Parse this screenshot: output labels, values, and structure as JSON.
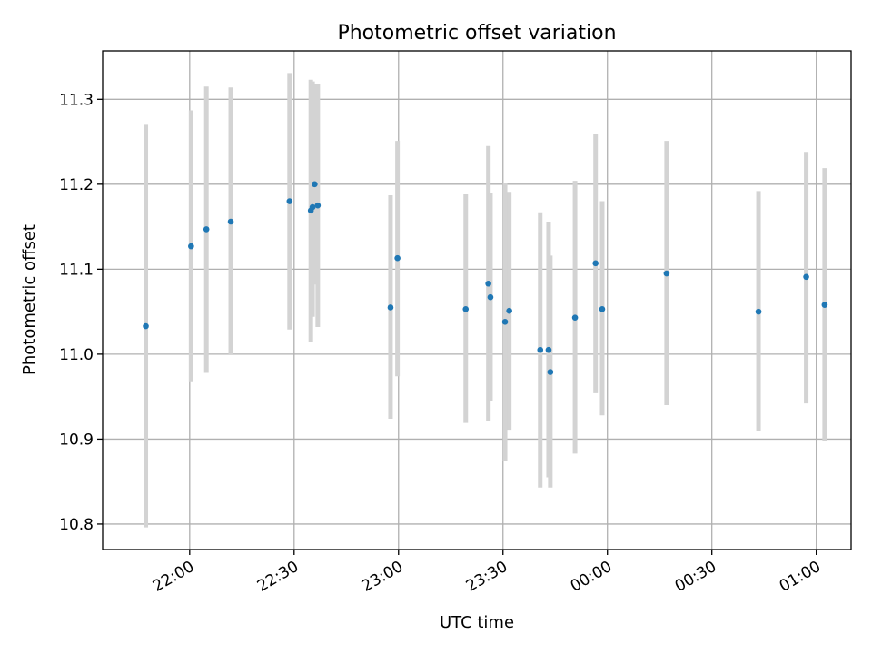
{
  "chart_data": {
    "type": "scatter",
    "title": "Photometric offset variation",
    "xlabel": "UTC time",
    "ylabel": "Photometric offset",
    "x_unit": "minutes after 21:00 UTC",
    "xlim": [
      35,
      250
    ],
    "ylim": [
      10.77,
      11.357
    ],
    "x_ticks": [
      {
        "value": 60,
        "label": "22:00"
      },
      {
        "value": 90,
        "label": "22:30"
      },
      {
        "value": 120,
        "label": "23:00"
      },
      {
        "value": 150,
        "label": "23:30"
      },
      {
        "value": 180,
        "label": "00:00"
      },
      {
        "value": 210,
        "label": "00:30"
      },
      {
        "value": 240,
        "label": "01:00"
      }
    ],
    "y_ticks": [
      {
        "value": 10.8,
        "label": "10.8"
      },
      {
        "value": 10.9,
        "label": "10.9"
      },
      {
        "value": 11.0,
        "label": "11.0"
      },
      {
        "value": 11.1,
        "label": "11.1"
      },
      {
        "value": 11.2,
        "label": "11.2"
      },
      {
        "value": 11.3,
        "label": "11.3"
      }
    ],
    "grid": true,
    "marker_color": "#1f77b4",
    "errorbar_color": "#d3d3d3",
    "points": [
      {
        "x": 47.4,
        "y": 11.033,
        "ylo": 10.796,
        "yhi": 11.27
      },
      {
        "x": 60.4,
        "y": 11.127,
        "ylo": 10.967,
        "yhi": 11.287
      },
      {
        "x": 64.8,
        "y": 11.147,
        "ylo": 10.978,
        "yhi": 11.315
      },
      {
        "x": 71.8,
        "y": 11.156,
        "ylo": 10.999,
        "yhi": 11.314
      },
      {
        "x": 88.7,
        "y": 11.18,
        "ylo": 11.029,
        "yhi": 11.331
      },
      {
        "x": 94.8,
        "y": 11.169,
        "ylo": 11.014,
        "yhi": 11.323
      },
      {
        "x": 95.3,
        "y": 11.173,
        "ylo": 11.044,
        "yhi": 11.321
      },
      {
        "x": 95.9,
        "y": 11.2,
        "ylo": 11.082,
        "yhi": 11.318
      },
      {
        "x": 96.8,
        "y": 11.175,
        "ylo": 11.032,
        "yhi": 11.318
      },
      {
        "x": 117.7,
        "y": 11.055,
        "ylo": 10.924,
        "yhi": 11.187
      },
      {
        "x": 119.7,
        "y": 11.113,
        "ylo": 10.974,
        "yhi": 11.251
      },
      {
        "x": 139.3,
        "y": 11.053,
        "ylo": 10.919,
        "yhi": 11.188
      },
      {
        "x": 145.8,
        "y": 11.083,
        "ylo": 10.921,
        "yhi": 11.245
      },
      {
        "x": 146.4,
        "y": 11.067,
        "ylo": 10.945,
        "yhi": 11.19
      },
      {
        "x": 150.6,
        "y": 11.038,
        "ylo": 10.874,
        "yhi": 11.202
      },
      {
        "x": 151.8,
        "y": 11.051,
        "ylo": 10.911,
        "yhi": 11.191
      },
      {
        "x": 160.7,
        "y": 11.005,
        "ylo": 10.843,
        "yhi": 11.167
      },
      {
        "x": 163.1,
        "y": 11.005,
        "ylo": 10.855,
        "yhi": 11.156
      },
      {
        "x": 163.6,
        "y": 10.979,
        "ylo": 10.843,
        "yhi": 11.116
      },
      {
        "x": 170.7,
        "y": 11.043,
        "ylo": 10.883,
        "yhi": 11.204
      },
      {
        "x": 176.6,
        "y": 11.107,
        "ylo": 10.954,
        "yhi": 11.259
      },
      {
        "x": 178.5,
        "y": 11.053,
        "ylo": 10.928,
        "yhi": 11.18
      },
      {
        "x": 197.0,
        "y": 11.095,
        "ylo": 10.94,
        "yhi": 11.251
      },
      {
        "x": 223.4,
        "y": 11.05,
        "ylo": 10.909,
        "yhi": 11.192
      },
      {
        "x": 237.1,
        "y": 11.091,
        "ylo": 10.942,
        "yhi": 11.238
      },
      {
        "x": 242.4,
        "y": 11.058,
        "ylo": 10.898,
        "yhi": 11.219
      }
    ]
  }
}
